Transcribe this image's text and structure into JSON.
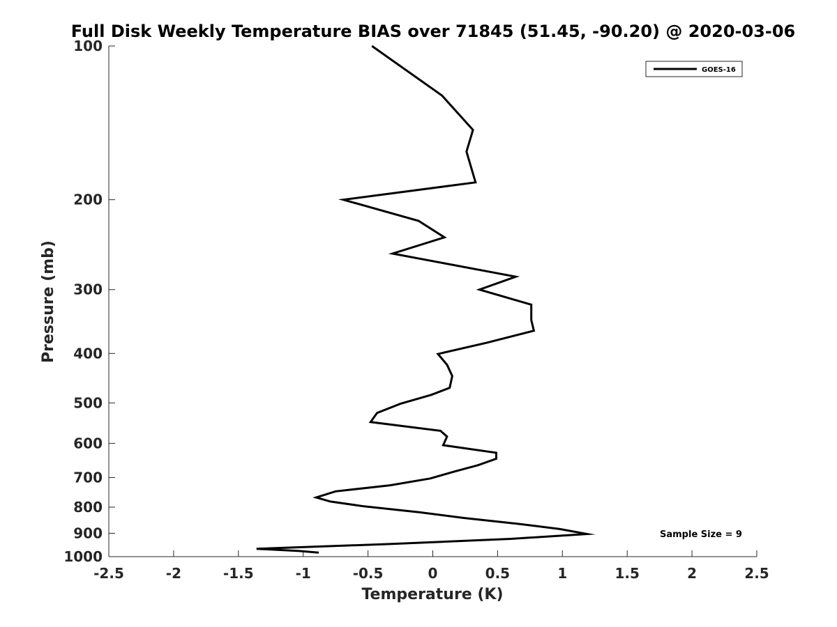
{
  "chart_data": {
    "type": "line",
    "title": "Full Disk Weekly Temperature BIAS over 71845 (51.45, -90.20) @ 2020-03-06",
    "xlabel": "Temperature (K)",
    "ylabel": "Pressure (mb)",
    "xlim": [
      -2.5,
      2.5
    ],
    "ylim": [
      1000,
      100
    ],
    "yscale": "log",
    "yaxis_reversed": true,
    "grid": false,
    "legend_position": "top-right",
    "x_ticks": [
      -2.5,
      -2,
      -1.5,
      -1,
      -0.5,
      0,
      0.5,
      1,
      1.5,
      2,
      2.5
    ],
    "x_tick_labels": [
      "-2.5",
      "-2",
      "-1.5",
      "-1",
      "-0.5",
      "0",
      "0.5",
      "1",
      "1.5",
      "2",
      "2.5"
    ],
    "y_ticks": [
      100,
      200,
      300,
      400,
      500,
      600,
      700,
      800,
      900,
      1000
    ],
    "y_tick_labels": [
      "100",
      "200",
      "300",
      "400",
      "500",
      "600",
      "700",
      "800",
      "900",
      "1000"
    ],
    "annotation": "Sample Size = 9",
    "series": [
      {
        "name": "GOES-16",
        "color": "#000000",
        "points": [
          {
            "x": -0.47,
            "p": 100
          },
          {
            "x": 0.07,
            "p": 125
          },
          {
            "x": 0.31,
            "p": 146
          },
          {
            "x": 0.26,
            "p": 161
          },
          {
            "x": 0.33,
            "p": 185
          },
          {
            "x": -0.69,
            "p": 200
          },
          {
            "x": -0.11,
            "p": 220
          },
          {
            "x": 0.09,
            "p": 237
          },
          {
            "x": -0.31,
            "p": 255
          },
          {
            "x": 0.64,
            "p": 283
          },
          {
            "x": 0.36,
            "p": 300
          },
          {
            "x": 0.76,
            "p": 321
          },
          {
            "x": 0.76,
            "p": 344
          },
          {
            "x": 0.78,
            "p": 361
          },
          {
            "x": 0.42,
            "p": 381
          },
          {
            "x": 0.04,
            "p": 401
          },
          {
            "x": 0.11,
            "p": 421
          },
          {
            "x": 0.15,
            "p": 443
          },
          {
            "x": 0.13,
            "p": 467
          },
          {
            "x": -0.01,
            "p": 482
          },
          {
            "x": -0.25,
            "p": 502
          },
          {
            "x": -0.43,
            "p": 523
          },
          {
            "x": -0.48,
            "p": 545
          },
          {
            "x": 0.06,
            "p": 567
          },
          {
            "x": 0.11,
            "p": 582
          },
          {
            "x": 0.08,
            "p": 605
          },
          {
            "x": 0.49,
            "p": 626
          },
          {
            "x": 0.49,
            "p": 643
          },
          {
            "x": 0.35,
            "p": 662
          },
          {
            "x": 0.17,
            "p": 681
          },
          {
            "x": -0.02,
            "p": 703
          },
          {
            "x": -0.33,
            "p": 725
          },
          {
            "x": -0.75,
            "p": 745
          },
          {
            "x": -0.9,
            "p": 766
          },
          {
            "x": -0.79,
            "p": 780
          },
          {
            "x": -0.53,
            "p": 797
          },
          {
            "x": -0.1,
            "p": 819
          },
          {
            "x": 0.24,
            "p": 840
          },
          {
            "x": 0.65,
            "p": 862
          },
          {
            "x": 0.98,
            "p": 883
          },
          {
            "x": 1.19,
            "p": 903
          },
          {
            "x": 0.6,
            "p": 923
          },
          {
            "x": -0.35,
            "p": 945
          },
          {
            "x": -1.36,
            "p": 965
          },
          {
            "x": -1.03,
            "p": 975
          },
          {
            "x": -0.88,
            "p": 982
          }
        ]
      }
    ]
  }
}
